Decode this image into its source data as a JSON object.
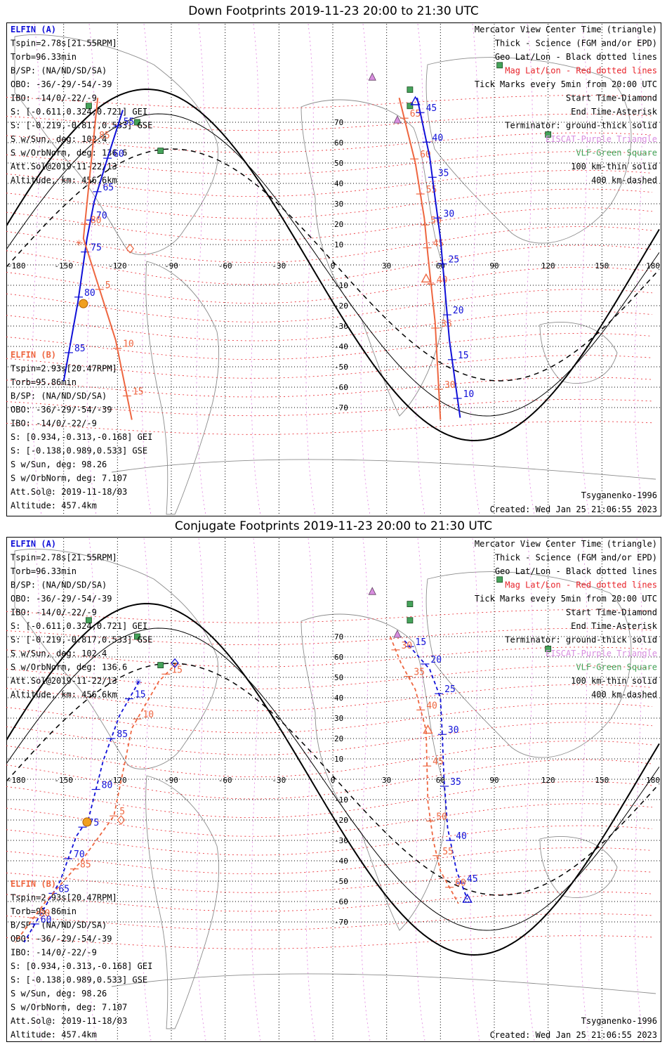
{
  "panels": [
    {
      "title": "Down Footprints 2019-11-23 20:00 to 21:30 UTC",
      "mode": "down",
      "elfin_a": {
        "name": "ELFIN (A)",
        "lines": [
          "Tspin=2.78s[21.55RPM]",
          "Torb=96.33min",
          "B/SP: (NA/ND/SD/SA)",
          "OBO: -36/-29/-54/-39",
          "IBO: -14/0/-22/-9",
          "S: [-0.611,0.324,0.721] GEI",
          "S: [-0.219,-0.817,0.533] GSE",
          "S w/Sun, deg: 102.4",
          "S w/OrbNorm, deg: 136.6",
          "Att.Sol@2019-11-22/13",
          "Altitude, km: 456.6km"
        ]
      },
      "elfin_b": {
        "name": "ELFIN (B)",
        "lines": [
          "Tspin=2.93s[20.47RPM]",
          "Torb=95.86min",
          "B/SP: (NA/ND/SD/SA)",
          "OBO: -36/-29/-54/-39",
          "IBO: -14/0/-22/-9",
          "S: [0.934,-0.313,-0.168] GEI",
          "S: [-0.138,0.989,0.533] GSE",
          "S w/Sun, deg: 98.26",
          "S w/OrbNorm, deg: 7.107",
          "Att.Sol@: 2019-11-18/03",
          "Altitude: 457.4km"
        ]
      },
      "legend": [
        {
          "text": "Mercator View Center Time (triangle)",
          "color": "#000000"
        },
        {
          "text": "Thick - Science (FGM and/or EPD)",
          "color": "#000000"
        },
        {
          "text": "Geo Lat/Lon - Black dotted lines",
          "color": "#000000"
        },
        {
          "text": "Mag Lat/Lon - Red dotted lines",
          "color": "#e8242b"
        },
        {
          "text": "Tick Marks every 5min from 20:00 UTC",
          "color": "#000000"
        },
        {
          "text": "Start Time-Diamond",
          "color": "#000000"
        },
        {
          "text": "End Time-Asterisk",
          "color": "#000000"
        },
        {
          "text": "Terminator: ground-thick solid",
          "color": "#000000"
        },
        {
          "text": "EISCAT-Purple Triangle",
          "color": "#d98ee0"
        },
        {
          "text": "VLF-Green Square",
          "color": "#45a35a"
        },
        {
          "text": "100 km-thin solid",
          "color": "#000000"
        },
        {
          "text": "400 km-dashed",
          "color": "#000000"
        }
      ],
      "model": "Tsyganenko-1996",
      "created": "Created: Wed Jan 25 21:06:55 2023",
      "lon_ticks": [
        "-180",
        "-150",
        "-120",
        "-90",
        "-60",
        "-30",
        "0",
        "30",
        "60",
        "90",
        "120",
        "150",
        "180"
      ],
      "lat_ticks": [
        "70",
        "60",
        "50",
        "40",
        "30",
        "20",
        "10",
        "0",
        "-10",
        "-20",
        "-30",
        "-40",
        "-50",
        "-60",
        "-70"
      ],
      "track_a_north": {
        "labels": [
          "55",
          "60",
          "65",
          "70",
          "75",
          "80",
          "85"
        ],
        "lon": [
          -117,
          -125,
          -133,
          -137,
          -142,
          -150
        ],
        "lat": [
          76,
          54,
          31,
          13,
          -18,
          -57
        ]
      },
      "track_b_north": {
        "labels": [
          "65",
          "60",
          "55",
          "50",
          "45",
          "40",
          "35",
          "30"
        ],
        "lon": [
          37,
          46,
          51,
          53,
          57,
          60
        ],
        "lat": [
          82,
          50,
          23,
          5,
          -28,
          -76
        ]
      },
      "track_a_south": {
        "labels": [
          "45",
          "40",
          "35",
          "30",
          "25",
          "20",
          "15",
          "10"
        ],
        "lon": [
          47,
          54,
          60,
          65,
          71
        ],
        "lat": [
          82,
          53,
          13,
          -37,
          -75
        ]
      },
      "track_b_south": {
        "labels": [
          "85",
          "80",
          "5",
          "10",
          "15"
        ],
        "lon": [
          -131,
          -139,
          -121,
          -112
        ],
        "lat": [
          82,
          13,
          -37,
          -76
        ]
      }
    },
    {
      "title": "Conjugate Footprints 2019-11-23 20:00 to 21:30 UTC",
      "mode": "conjugate",
      "elfin_a": {
        "name": "ELFIN (A)",
        "lines": [
          "Tspin=2.78s[21.55RPM]",
          "Torb=96.33min",
          "B/SP: (NA/ND/SD/SA)",
          "OBO: -36/-29/-54/-39",
          "IBO: -14/0/-22/-9",
          "S: [-0.611,0.324,0.721] GEI",
          "S: [-0.219,-0.817,0.533] GSE",
          "S w/Sun, deg: 102.4",
          "S w/OrbNorm, deg: 136.6",
          "Att.Sol@2019-11-22/13",
          "Altitude, km: 456.6km"
        ]
      },
      "elfin_b": {
        "name": "ELFIN (B)",
        "lines": [
          "Tspin=2.93s[20.47RPM]",
          "Torb=95.86min",
          "B/SP: (NA/ND/SD/SA)",
          "OBO: -36/-29/-54/-39",
          "IBO: -14/0/-22/-9",
          "S: [0.934,-0.313,-0.168] GEI",
          "S: [-0.138,0.989,0.533] GSE",
          "S w/Sun, deg: 98.26",
          "S w/OrbNorm, deg: 7.107",
          "Att.Sol@: 2019-11-18/03",
          "Altitude: 457.4km"
        ]
      },
      "legend": [
        {
          "text": "Mercator View Center Time (triangle)",
          "color": "#000000"
        },
        {
          "text": "Thick - Science (FGM and/or EPD)",
          "color": "#000000"
        },
        {
          "text": "Geo Lat/Lon - Black dotted lines",
          "color": "#000000"
        },
        {
          "text": "Mag Lat/Lon - Red dotted lines",
          "color": "#e8242b"
        },
        {
          "text": "Tick Marks every 5min from 20:00 UTC",
          "color": "#000000"
        },
        {
          "text": "Start Time-Diamond",
          "color": "#000000"
        },
        {
          "text": "End Time-Asterisk",
          "color": "#000000"
        },
        {
          "text": "Terminator: ground-thick solid",
          "color": "#000000"
        },
        {
          "text": "EISCAT-Purple Triangle",
          "color": "#d98ee0"
        },
        {
          "text": "VLF-Green Square",
          "color": "#45a35a"
        },
        {
          "text": "100 km-thin solid",
          "color": "#000000"
        },
        {
          "text": "400 km-dashed",
          "color": "#000000"
        }
      ],
      "model": "Tsyganenko-1996",
      "created": "Created: Wed Jan 25 21:06:55 2023",
      "lon_ticks": [
        "-180",
        "-150",
        "-120",
        "-90",
        "-60",
        "-30",
        "0",
        "30",
        "60",
        "90",
        "120",
        "150",
        "180"
      ],
      "lat_ticks": [
        "70",
        "60",
        "50",
        "40",
        "30",
        "20",
        "10",
        "0",
        "-10",
        "-20",
        "-30",
        "-40",
        "-50",
        "-60",
        "-70"
      ],
      "track_a_west": {
        "labels": [
          "15",
          "85",
          "80",
          "75",
          "70",
          "65",
          "60"
        ],
        "lon": [
          -108,
          -119,
          -128,
          -136,
          -143,
          -152,
          -160,
          -172
        ],
        "lat": [
          48,
          31,
          9,
          -19,
          -28,
          -50,
          -62,
          -80
        ]
      },
      "track_b_west": {
        "labels": [
          "15",
          "10",
          "5",
          "85",
          "80"
        ],
        "lon": [
          -87,
          -97,
          -112,
          -122,
          -140,
          -160,
          -177
        ],
        "lat": [
          57,
          48,
          25,
          -18,
          -40,
          -60,
          -80
        ]
      },
      "track_a_east": {
        "labels": [
          "15",
          "20",
          "25",
          "30",
          "35",
          "40",
          "45"
        ],
        "lon": [
          40,
          45,
          54,
          60,
          61,
          62,
          64,
          69,
          75
        ],
        "lat": [
          68,
          63,
          54,
          40,
          22,
          0,
          -24,
          -45,
          -59
        ]
      },
      "track_b_east": {
        "labels": [
          "30",
          "35",
          "40",
          "45",
          "50",
          "55",
          "60"
        ],
        "lon": [
          32,
          38,
          46,
          52,
          53,
          56,
          60,
          70
        ],
        "lat": [
          70,
          57,
          44,
          24,
          -11,
          -30,
          -45,
          -61
        ]
      }
    }
  ]
}
